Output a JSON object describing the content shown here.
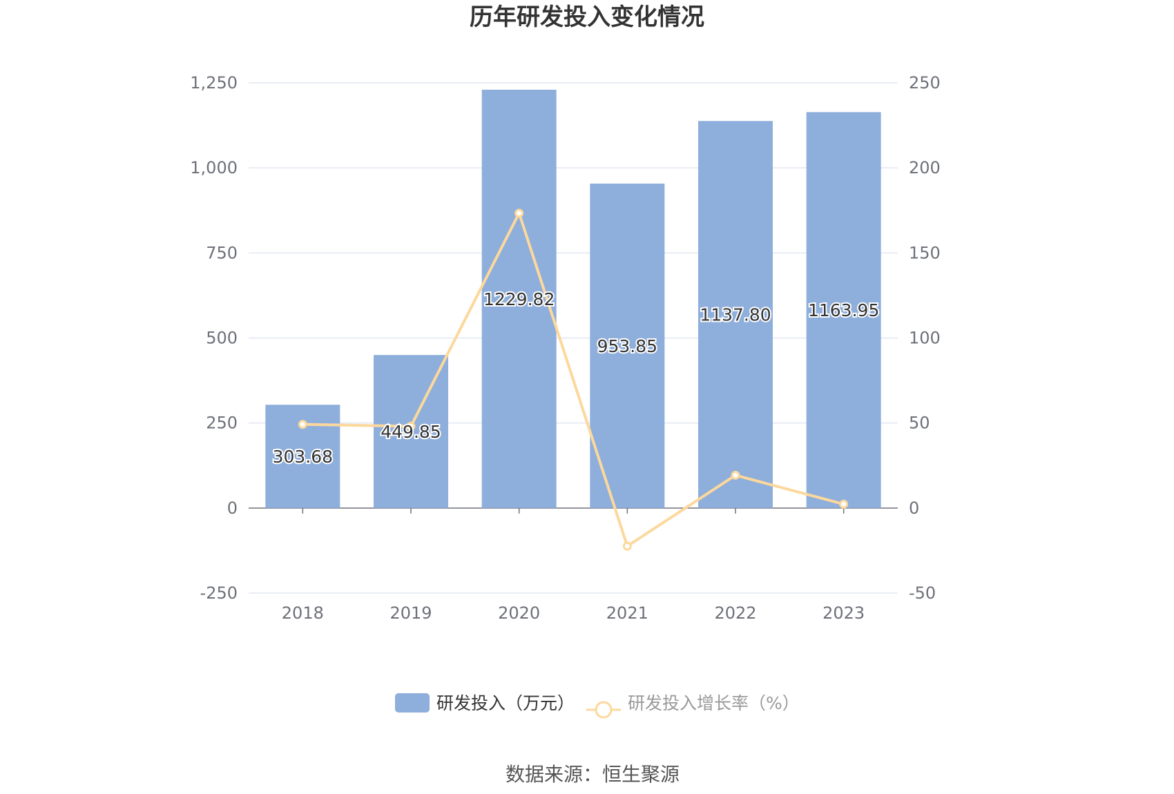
{
  "chart_data": {
    "type": "bar",
    "title": "历年研发投入变化情况",
    "categories": [
      "2018",
      "2019",
      "2020",
      "2021",
      "2022",
      "2023"
    ],
    "series": [
      {
        "name": "研发投入（万元）",
        "type": "bar",
        "axis": "left",
        "values": [
          303.68,
          449.85,
          1229.82,
          953.85,
          1137.8,
          1163.95
        ],
        "labels": [
          "303.68",
          "449.85",
          "1229.82",
          "953.85",
          "1137.80",
          "1163.95"
        ],
        "color": "#8eaedb"
      },
      {
        "name": "研发投入增长率（%）",
        "type": "line",
        "axis": "right",
        "values": [
          49.2,
          48.1,
          173.4,
          -22.4,
          19.3,
          2.3
        ],
        "color": "#fcd89c"
      }
    ],
    "y_left": {
      "ylim": [
        -250,
        1250
      ],
      "ticks": [
        -250,
        0,
        250,
        500,
        750,
        1000,
        1250
      ],
      "tick_labels": [
        "-250",
        "0",
        "250",
        "500",
        "750",
        "1,000",
        "1,250"
      ]
    },
    "y_right": {
      "ylim": [
        -50,
        250
      ],
      "ticks": [
        -50,
        0,
        50,
        100,
        150,
        200,
        250
      ],
      "tick_labels": [
        "-50",
        "0",
        "50",
        "100",
        "150",
        "200",
        "250"
      ]
    },
    "grid": true,
    "legend_position": "bottom-center",
    "colors": {
      "grid": "#e0e6f1",
      "axis": "#6e7079",
      "tick_text": "#6e7079",
      "legend_text_active": "#333333",
      "legend_text_line": "#999999"
    }
  },
  "source": {
    "text": "数据来源：恒生聚源"
  }
}
